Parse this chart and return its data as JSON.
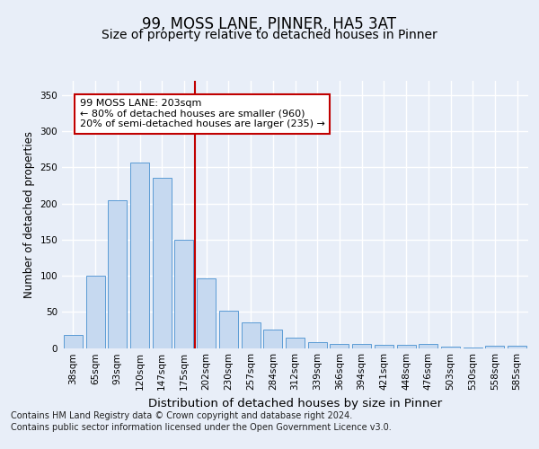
{
  "title1": "99, MOSS LANE, PINNER, HA5 3AT",
  "title2": "Size of property relative to detached houses in Pinner",
  "xlabel": "Distribution of detached houses by size in Pinner",
  "ylabel": "Number of detached properties",
  "categories": [
    "38sqm",
    "65sqm",
    "93sqm",
    "120sqm",
    "147sqm",
    "175sqm",
    "202sqm",
    "230sqm",
    "257sqm",
    "284sqm",
    "312sqm",
    "339sqm",
    "366sqm",
    "394sqm",
    "421sqm",
    "448sqm",
    "476sqm",
    "503sqm",
    "530sqm",
    "558sqm",
    "585sqm"
  ],
  "values": [
    18,
    100,
    204,
    257,
    236,
    150,
    96,
    52,
    35,
    25,
    14,
    8,
    6,
    5,
    4,
    4,
    5,
    2,
    1,
    3,
    3
  ],
  "bar_color": "#c6d9f0",
  "bar_edge_color": "#5b9bd5",
  "vline_bin": 6,
  "vline_color": "#c00000",
  "annotation_text_line1": "99 MOSS LANE: 203sqm",
  "annotation_text_line2": "← 80% of detached houses are smaller (960)",
  "annotation_text_line3": "20% of semi-detached houses are larger (235) →",
  "annotation_box_color": "#ffffff",
  "annotation_box_edge": "#c00000",
  "ylim": [
    0,
    370
  ],
  "yticks": [
    0,
    50,
    100,
    150,
    200,
    250,
    300,
    350
  ],
  "background_color": "#e8eef8",
  "grid_color": "#ffffff",
  "footer_line1": "Contains HM Land Registry data © Crown copyright and database right 2024.",
  "footer_line2": "Contains public sector information licensed under the Open Government Licence v3.0.",
  "title1_fontsize": 12,
  "title2_fontsize": 10,
  "xlabel_fontsize": 9.5,
  "ylabel_fontsize": 8.5,
  "tick_fontsize": 7.5,
  "annotation_fontsize": 8,
  "footer_fontsize": 7
}
